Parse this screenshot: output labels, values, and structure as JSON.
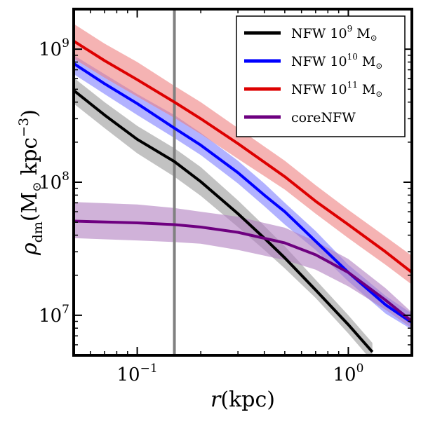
{
  "chart_data": {
    "type": "line",
    "title": "",
    "xscale": "log",
    "yscale": "log",
    "xlim": [
      0.05,
      2.0
    ],
    "ylim": [
      5000000,
      2000000000
    ],
    "xlabel": {
      "symbol": "r",
      "unit": "(kpc)"
    },
    "ylabel": {
      "symbol": "ρ",
      "subscript": "dm",
      "unit_open": "(M",
      "unit_sun": "⊙",
      "unit_mid": " kpc",
      "unit_exp": "−3",
      "unit_close": ")"
    },
    "xticks": [
      {
        "value": 0.1,
        "base": "10",
        "exp": "−1"
      },
      {
        "value": 1.0,
        "base": "10",
        "exp": "0"
      }
    ],
    "yticks": [
      {
        "value": 10000000,
        "base": "10",
        "exp": "7"
      },
      {
        "value": 100000000,
        "base": "10",
        "exp": "8"
      },
      {
        "value": 1000000000,
        "base": "10",
        "exp": "9"
      }
    ],
    "vline": {
      "x": 0.15,
      "color": "#808080"
    },
    "legend_position": "top-right",
    "series": [
      {
        "name": "NFW 10^9 M☉",
        "label_base": "NFW 10",
        "label_exp": "9",
        "label_unit": " M",
        "label_sun": "⊙",
        "color": "#000000",
        "band_color": "#999999",
        "x": [
          0.05,
          0.07,
          0.1,
          0.15,
          0.2,
          0.3,
          0.4,
          0.5,
          0.7,
          1.0,
          1.3
        ],
        "y": [
          490000000,
          320000000,
          210000000,
          143000000,
          101000000,
          58000000,
          38000000,
          27000000,
          15500000,
          8500000,
          5300000
        ],
        "lower": [
          390000000,
          255000000,
          165000000,
          110000000,
          79000000,
          46000000,
          31000000,
          22500000,
          13500000,
          7300000,
          4500000
        ],
        "upper": [
          610000000,
          400000000,
          265000000,
          180000000,
          130000000,
          73000000,
          47000000,
          33000000,
          18500000,
          10000000,
          6200000
        ]
      },
      {
        "name": "NFW 10^10 M☉",
        "label_base": "NFW 10",
        "label_exp": "10",
        "label_unit": " M",
        "label_sun": "⊙",
        "color": "#0000ff",
        "band_color": "#7f7fff",
        "x": [
          0.05,
          0.07,
          0.1,
          0.15,
          0.2,
          0.3,
          0.4,
          0.5,
          0.7,
          1.0,
          1.5,
          2.0
        ],
        "y": [
          780000000,
          550000000,
          390000000,
          255000000,
          190000000,
          118000000,
          80000000,
          60000000,
          36000000,
          21000000,
          12000000,
          8800000
        ],
        "lower": [
          650000000,
          460000000,
          320000000,
          215000000,
          160000000,
          98000000,
          66000000,
          48000000,
          31000000,
          18000000,
          10300000,
          7800000
        ],
        "upper": [
          900000000,
          650000000,
          460000000,
          320000000,
          235000000,
          145000000,
          98000000,
          70000000,
          43000000,
          24000000,
          14000000,
          10300000
        ]
      },
      {
        "name": "NFW 10^11 M☉",
        "label_base": "NFW 10",
        "label_exp": "11",
        "label_unit": " M",
        "label_sun": "⊙",
        "color": "#dd0000",
        "band_color": "#ef8080",
        "x": [
          0.05,
          0.07,
          0.1,
          0.15,
          0.2,
          0.3,
          0.5,
          0.7,
          1.0,
          1.5,
          2.0
        ],
        "y": [
          1150000000,
          820000000,
          590000000,
          400000000,
          300000000,
          195000000,
          110000000,
          72000000,
          48000000,
          30000000,
          21000000
        ],
        "lower": [
          850000000,
          610000000,
          440000000,
          305000000,
          230000000,
          150000000,
          88000000,
          58000000,
          38000000,
          24000000,
          17000000
        ],
        "upper": [
          1550000000,
          1100000000,
          800000000,
          530000000,
          400000000,
          255000000,
          145000000,
          95000000,
          62000000,
          39000000,
          28000000
        ]
      },
      {
        "name": "coreNFW",
        "label_base": "coreNFW",
        "label_exp": "",
        "label_unit": "",
        "label_sun": "",
        "color": "#6e0080",
        "band_color": "#b07fc0",
        "x": [
          0.05,
          0.1,
          0.15,
          0.2,
          0.3,
          0.5,
          0.7,
          1.0,
          1.5,
          2.0
        ],
        "y": [
          51000000,
          49500000,
          48000000,
          46000000,
          42000000,
          35000000,
          28500000,
          21000000,
          13000000,
          9000000
        ],
        "lower": [
          38000000,
          36500000,
          35500000,
          34500000,
          31000000,
          26000000,
          22000000,
          16500000,
          11000000,
          8000000
        ],
        "upper": [
          71000000,
          68000000,
          64000000,
          60000000,
          55000000,
          45500000,
          36000000,
          26500000,
          16000000,
          10500000
        ]
      }
    ]
  }
}
